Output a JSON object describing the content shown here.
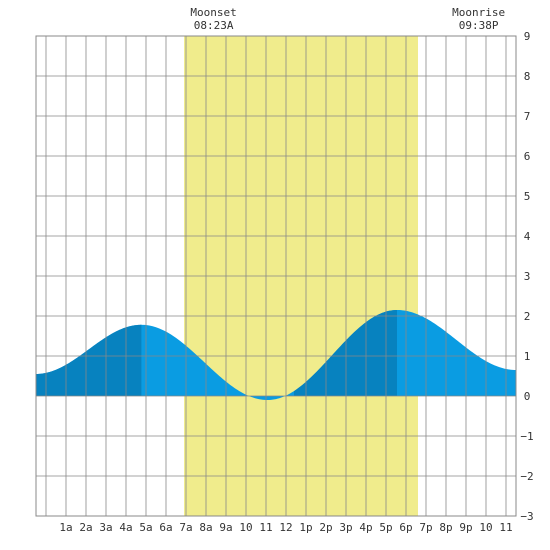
{
  "chart_data": {
    "type": "area",
    "title": "",
    "xlabel": "",
    "ylabel": "",
    "xlim": [
      -0.5,
      23.5
    ],
    "ylim": [
      -3,
      9
    ],
    "x_ticks": [
      {
        "x": 1,
        "label": "1a"
      },
      {
        "x": 2,
        "label": "2a"
      },
      {
        "x": 3,
        "label": "3a"
      },
      {
        "x": 4,
        "label": "4a"
      },
      {
        "x": 5,
        "label": "5a"
      },
      {
        "x": 6,
        "label": "6a"
      },
      {
        "x": 7,
        "label": "7a"
      },
      {
        "x": 8,
        "label": "8a"
      },
      {
        "x": 9,
        "label": "9a"
      },
      {
        "x": 10,
        "label": "10"
      },
      {
        "x": 11,
        "label": "11"
      },
      {
        "x": 12,
        "label": "12"
      },
      {
        "x": 13,
        "label": "1p"
      },
      {
        "x": 14,
        "label": "2p"
      },
      {
        "x": 15,
        "label": "3p"
      },
      {
        "x": 16,
        "label": "4p"
      },
      {
        "x": 17,
        "label": "5p"
      },
      {
        "x": 18,
        "label": "6p"
      },
      {
        "x": 19,
        "label": "7p"
      },
      {
        "x": 20,
        "label": "8p"
      },
      {
        "x": 21,
        "label": "9p"
      },
      {
        "x": 22,
        "label": "10"
      },
      {
        "x": 23,
        "label": "11"
      }
    ],
    "y_ticks": [
      {
        "y": 9,
        "label": "9"
      },
      {
        "y": 8,
        "label": "8"
      },
      {
        "y": 7,
        "label": "7"
      },
      {
        "y": 6,
        "label": "6"
      },
      {
        "y": 5,
        "label": "5"
      },
      {
        "y": 4,
        "label": "4"
      },
      {
        "y": 3,
        "label": "3"
      },
      {
        "y": 2,
        "label": "2"
      },
      {
        "y": 1,
        "label": "1"
      },
      {
        "y": 0,
        "label": "0"
      },
      {
        "y": -1,
        "label": "−1"
      },
      {
        "y": -2,
        "label": "−2"
      },
      {
        "y": -3,
        "label": "−3"
      }
    ],
    "grid": true,
    "daylight": {
      "start": 6.9,
      "end": 18.6
    },
    "tide_extremes": [
      {
        "x": -0.5,
        "y": 0.55
      },
      {
        "x": 4.77,
        "y": 1.78
      },
      {
        "x": 11.08,
        "y": -0.1
      },
      {
        "x": 17.55,
        "y": 2.15
      },
      {
        "x": 23.5,
        "y": 0.65
      }
    ],
    "dark_bands": [
      {
        "start": -0.5,
        "end": 4.77
      },
      {
        "start": 12.4,
        "end": 17.55
      }
    ],
    "annotations": [
      {
        "type": "moonset",
        "x": 8.38,
        "title": "Moonset",
        "time": "08:23A"
      },
      {
        "type": "moonrise",
        "x": 21.63,
        "title": "Moonrise",
        "time": "09:38P"
      }
    ],
    "colors": {
      "daylight": "#f0ec8c",
      "water_light": "#0a9ce2",
      "water_dark": "#0782bf",
      "grid": "#888888",
      "text": "#333333"
    }
  }
}
